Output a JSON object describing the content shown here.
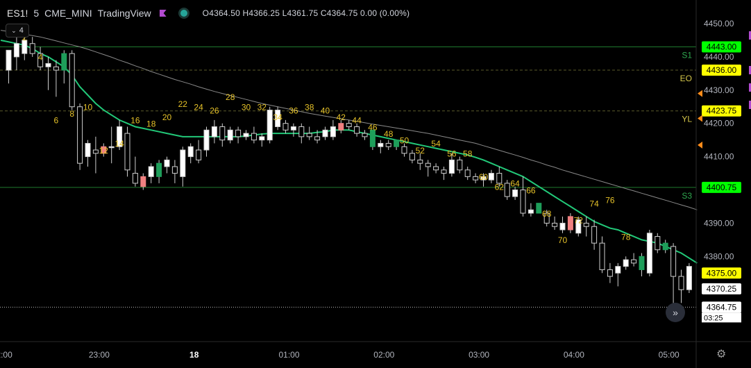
{
  "header": {
    "symbol": "ES1!",
    "interval": "5",
    "exchange": "CME_MINI",
    "source": "TradingView",
    "ohlc": "O4364.50  H4366.25  L4361.75  C4364.75  0.00 (0.00%)"
  },
  "indicator_toggle": {
    "count": "4"
  },
  "price_axis": {
    "ticks": [
      "4450.00",
      "4440.00",
      "4430.00",
      "4420.00",
      "4410.00",
      "4400.00",
      "4390.00",
      "4380.00",
      "4370.00"
    ],
    "tags": [
      {
        "label": "4443.00",
        "price": 4443.0,
        "bg": "#00ff00",
        "fg": "#000000"
      },
      {
        "label": "4436.00",
        "price": 4436.0,
        "bg": "#ffff00",
        "fg": "#000000"
      },
      {
        "label": "4423.75",
        "price": 4423.75,
        "bg": "#ffff00",
        "fg": "#000000"
      },
      {
        "label": "4400.75",
        "price": 4400.75,
        "bg": "#00ff00",
        "fg": "#000000"
      },
      {
        "label": "4375.00",
        "price": 4375.0,
        "bg": "#ffff00",
        "fg": "#000000"
      },
      {
        "label": "4370.25",
        "price": 4370.25,
        "bg": "#ffffff",
        "fg": "#000000"
      },
      {
        "label": "4364.75",
        "price": 4364.75,
        "bg": "#ffffff",
        "fg": "#000000"
      }
    ],
    "countdown": "03:25"
  },
  "time_axis": {
    "ticks": [
      {
        "label": "2:00",
        "bar": -1
      },
      {
        "label": "23:00",
        "bar": 11
      },
      {
        "label": "18",
        "bar": 23
      },
      {
        "label": "01:00",
        "bar": 35
      },
      {
        "label": "02:00",
        "bar": 47
      },
      {
        "label": "03:00",
        "bar": 59
      },
      {
        "label": "04:00",
        "bar": 71
      },
      {
        "label": "05:00",
        "bar": 83
      }
    ]
  },
  "levels": [
    {
      "label": "S1",
      "price": 4443.0,
      "color": "#1f7a2e",
      "style": "solid"
    },
    {
      "label": "EO",
      "price": 4436.0,
      "color": "#5a5a2a",
      "style": "dashed"
    },
    {
      "label": "YL",
      "price": 4423.75,
      "color": "#5a5a2a",
      "style": "dashed"
    },
    {
      "label": "S3",
      "price": 4400.75,
      "color": "#1f7a2e",
      "style": "solid"
    }
  ],
  "colors": {
    "up": "#ffffff",
    "down": "#000000",
    "wick": "#cfcfcf",
    "ema": "#22c979",
    "sma": "#8a8a8a",
    "green_bar": "#1e9e5a",
    "red_bar": "#f08080",
    "bar_number": "#e6c229"
  },
  "chart_data": {
    "type": "candlestick",
    "interval": "5 min",
    "ylim": [
      4362,
      4455
    ],
    "bars": [
      {
        "n": 0,
        "o": 4436,
        "h": 4442,
        "l": 4432,
        "c": 4442
      },
      {
        "n": 1,
        "o": 4440,
        "h": 4446,
        "l": 4436,
        "c": 4444
      },
      {
        "n": 2,
        "o": 4441,
        "h": 4447,
        "l": 4439,
        "c": 4445
      },
      {
        "n": 3,
        "o": 4444,
        "h": 4446,
        "l": 4440,
        "c": 4441
      },
      {
        "n": 4,
        "o": 4441,
        "h": 4443,
        "l": 4436,
        "c": 4437
      },
      {
        "n": 5,
        "o": 4437,
        "h": 4440,
        "l": 4430,
        "c": 4438
      },
      {
        "n": 6,
        "o": 4437,
        "h": 4439,
        "l": 4428,
        "c": 4436
      },
      {
        "n": 7,
        "o": 4436,
        "h": 4442,
        "l": 4432,
        "c": 4441,
        "color": "green"
      },
      {
        "n": 8,
        "o": 4441,
        "h": 4442,
        "l": 4424,
        "c": 4425
      },
      {
        "n": 9,
        "o": 4425,
        "h": 4426,
        "l": 4406,
        "c": 4408
      },
      {
        "n": 10,
        "o": 4410,
        "h": 4415,
        "l": 4407,
        "c": 4414
      },
      {
        "n": 11,
        "o": 4412,
        "h": 4416,
        "l": 4405,
        "c": 4411
      },
      {
        "n": 12,
        "o": 4411,
        "h": 4414,
        "l": 4410,
        "c": 4413,
        "color": "red"
      },
      {
        "n": 13,
        "o": 4413,
        "h": 4419,
        "l": 4408,
        "c": 4413
      },
      {
        "n": 14,
        "o": 4413,
        "h": 4421,
        "l": 4412,
        "c": 4419
      },
      {
        "n": 15,
        "o": 4417,
        "h": 4419,
        "l": 4404,
        "c": 4406
      },
      {
        "n": 16,
        "o": 4405,
        "h": 4410,
        "l": 4401,
        "c": 4402
      },
      {
        "n": 17,
        "o": 4401,
        "h": 4405,
        "l": 4400,
        "c": 4404,
        "color": "red"
      },
      {
        "n": 18,
        "o": 4404,
        "h": 4408,
        "l": 4402,
        "c": 4407
      },
      {
        "n": 19,
        "o": 4404,
        "h": 4409,
        "l": 4402,
        "c": 4408,
        "color": "green"
      },
      {
        "n": 20,
        "o": 4407,
        "h": 4410,
        "l": 4405,
        "c": 4409
      },
      {
        "n": 21,
        "o": 4407,
        "h": 4409,
        "l": 4402,
        "c": 4405
      },
      {
        "n": 22,
        "o": 4404,
        "h": 4413,
        "l": 4401,
        "c": 4412
      },
      {
        "n": 23,
        "o": 4410,
        "h": 4414,
        "l": 4408,
        "c": 4413
      },
      {
        "n": 24,
        "o": 4412,
        "h": 4415,
        "l": 4408,
        "c": 4409
      },
      {
        "n": 25,
        "o": 4412,
        "h": 4419,
        "l": 4410,
        "c": 4418
      },
      {
        "n": 26,
        "o": 4416,
        "h": 4421,
        "l": 4414,
        "c": 4419
      },
      {
        "n": 27,
        "o": 4419,
        "h": 4420,
        "l": 4413,
        "c": 4415
      },
      {
        "n": 28,
        "o": 4415,
        "h": 4419,
        "l": 4414,
        "c": 4418
      },
      {
        "n": 29,
        "o": 4418,
        "h": 4419,
        "l": 4414,
        "c": 4416
      },
      {
        "n": 30,
        "o": 4416,
        "h": 4418,
        "l": 4415,
        "c": 4417
      },
      {
        "n": 31,
        "o": 4417,
        "h": 4419,
        "l": 4414,
        "c": 4415
      },
      {
        "n": 32,
        "o": 4415,
        "h": 4417,
        "l": 4413,
        "c": 4416
      },
      {
        "n": 33,
        "o": 4415,
        "h": 4425,
        "l": 4414,
        "c": 4424
      },
      {
        "n": 34,
        "o": 4419,
        "h": 4425,
        "l": 4418,
        "c": 4424
      },
      {
        "n": 35,
        "o": 4420,
        "h": 4421,
        "l": 4417,
        "c": 4418
      },
      {
        "n": 36,
        "o": 4418,
        "h": 4420,
        "l": 4416,
        "c": 4419
      },
      {
        "n": 37,
        "o": 4419,
        "h": 4420,
        "l": 4414,
        "c": 4416
      },
      {
        "n": 38,
        "o": 4417,
        "h": 4419,
        "l": 4415,
        "c": 4416
      },
      {
        "n": 39,
        "o": 4416,
        "h": 4418,
        "l": 4414,
        "c": 4415
      },
      {
        "n": 40,
        "o": 4416,
        "h": 4419,
        "l": 4415,
        "c": 4418
      },
      {
        "n": 41,
        "o": 4416,
        "h": 4421,
        "l": 4415,
        "c": 4419
      },
      {
        "n": 42,
        "o": 4418,
        "h": 4421,
        "l": 4417,
        "c": 4420,
        "color": "red"
      },
      {
        "n": 43,
        "o": 4420,
        "h": 4421,
        "l": 4418,
        "c": 4419
      },
      {
        "n": 44,
        "o": 4419,
        "h": 4420,
        "l": 4416,
        "c": 4417
      },
      {
        "n": 45,
        "o": 4417,
        "h": 4418,
        "l": 4415,
        "c": 4416
      },
      {
        "n": 46,
        "o": 4418,
        "h": 4418,
        "l": 4412,
        "c": 4413,
        "color": "green"
      },
      {
        "n": 47,
        "o": 4413,
        "h": 4415,
        "l": 4411,
        "c": 4414
      },
      {
        "n": 48,
        "o": 4414,
        "h": 4415,
        "l": 4412,
        "c": 4413
      },
      {
        "n": 49,
        "o": 4415,
        "h": 4415,
        "l": 4412,
        "c": 4413,
        "color": "green"
      },
      {
        "n": 50,
        "o": 4413,
        "h": 4414,
        "l": 4410,
        "c": 4411
      },
      {
        "n": 51,
        "o": 4411,
        "h": 4412,
        "l": 4408,
        "c": 4409
      },
      {
        "n": 52,
        "o": 4409,
        "h": 4411,
        "l": 4406,
        "c": 4408
      },
      {
        "n": 53,
        "o": 4408,
        "h": 4409,
        "l": 4404,
        "c": 4407
      },
      {
        "n": 54,
        "o": 4407,
        "h": 4408,
        "l": 4405,
        "c": 4406
      },
      {
        "n": 55,
        "o": 4406,
        "h": 4407,
        "l": 4403,
        "c": 4405
      },
      {
        "n": 56,
        "o": 4405,
        "h": 4411,
        "l": 4404,
        "c": 4409
      },
      {
        "n": 57,
        "o": 4409,
        "h": 4410,
        "l": 4405,
        "c": 4406
      },
      {
        "n": 58,
        "o": 4406,
        "h": 4407,
        "l": 4403,
        "c": 4404
      },
      {
        "n": 59,
        "o": 4404,
        "h": 4405,
        "l": 4402,
        "c": 4403
      },
      {
        "n": 60,
        "o": 4403,
        "h": 4405,
        "l": 4401,
        "c": 4404
      },
      {
        "n": 61,
        "o": 4403,
        "h": 4406,
        "l": 4402,
        "c": 4405
      },
      {
        "n": 62,
        "o": 4405,
        "h": 4407,
        "l": 4401,
        "c": 4402
      },
      {
        "n": 63,
        "o": 4402,
        "h": 4403,
        "l": 4397,
        "c": 4398
      },
      {
        "n": 64,
        "o": 4398,
        "h": 4401,
        "l": 4397,
        "c": 4400
      },
      {
        "n": 65,
        "o": 4400,
        "h": 4404,
        "l": 4392,
        "c": 4393
      },
      {
        "n": 66,
        "o": 4393,
        "h": 4396,
        "l": 4392,
        "c": 4394
      },
      {
        "n": 67,
        "o": 4396,
        "h": 4396,
        "l": 4393,
        "c": 4393,
        "color": "green"
      },
      {
        "n": 68,
        "o": 4393,
        "h": 4394,
        "l": 4389,
        "c": 4390
      },
      {
        "n": 69,
        "o": 4390,
        "h": 4392,
        "l": 4388,
        "c": 4389
      },
      {
        "n": 70,
        "o": 4388,
        "h": 4392,
        "l": 4387,
        "c": 4390
      },
      {
        "n": 71,
        "o": 4388,
        "h": 4393,
        "l": 4387,
        "c": 4392,
        "color": "red"
      },
      {
        "n": 72,
        "o": 4387,
        "h": 4392,
        "l": 4386,
        "c": 4391
      },
      {
        "n": 73,
        "o": 4390,
        "h": 4392,
        "l": 4386,
        "c": 4389
      },
      {
        "n": 74,
        "o": 4389,
        "h": 4391,
        "l": 4382,
        "c": 4384
      },
      {
        "n": 75,
        "o": 4384,
        "h": 4386,
        "l": 4375,
        "c": 4376
      },
      {
        "n": 76,
        "o": 4376,
        "h": 4378,
        "l": 4372,
        "c": 4374
      },
      {
        "n": 77,
        "o": 4375,
        "h": 4378,
        "l": 4371,
        "c": 4377
      },
      {
        "n": 78,
        "o": 4377,
        "h": 4380,
        "l": 4376,
        "c": 4379
      },
      {
        "n": 79,
        "o": 4379,
        "h": 4381,
        "l": 4377,
        "c": 4378
      },
      {
        "n": 80,
        "o": 4376,
        "h": 4381,
        "l": 4374,
        "c": 4380,
        "color": "green"
      },
      {
        "n": 81,
        "o": 4375,
        "h": 4388,
        "l": 4374,
        "c": 4387
      },
      {
        "n": 82,
        "o": 4386,
        "h": 4387,
        "l": 4381,
        "c": 4382
      },
      {
        "n": 83,
        "o": 4382,
        "h": 4385,
        "l": 4381,
        "c": 4384,
        "color": "green"
      },
      {
        "n": 84,
        "o": 4383,
        "h": 4384,
        "l": 4366,
        "c": 4374
      },
      {
        "n": 85,
        "o": 4374,
        "h": 4376,
        "l": 4366,
        "c": 4370
      },
      {
        "n": 86,
        "o": 4370,
        "h": 4378,
        "l": 4369,
        "c": 4377
      },
      {
        "n": 87,
        "o": 4377,
        "h": 4378,
        "l": 4369,
        "c": 4370,
        "color": "green"
      },
      {
        "n": 88,
        "o": 4370,
        "h": 4374,
        "l": 4364,
        "c": 4372
      }
    ],
    "ema": [
      4445,
      4444.5,
      4444,
      4443.5,
      4442.5,
      4441,
      4440,
      4438.5,
      4437,
      4434.5,
      4431,
      4428.5,
      4426,
      4424,
      4422.5,
      4421,
      4420,
      4419,
      4418.5,
      4418,
      4417.5,
      4417,
      4416.5,
      4416,
      4416,
      4416,
      4416,
      4416,
      4416,
      4416,
      4416,
      4416.2,
      4416.5,
      4416.8,
      4417,
      4417,
      4417,
      4417,
      4417,
      4417,
      4417.3,
      4417.5,
      4418,
      4418,
      4418,
      4417.5,
      4417,
      4416.5,
      4416,
      4415.5,
      4415,
      4414.5,
      4414,
      4413.5,
      4413,
      4412.5,
      4412,
      4411.5,
      4411,
      4410.5,
      4409.8,
      4409,
      4408,
      4407,
      4406,
      4405,
      4404,
      4402.5,
      4401,
      4399.5,
      4398,
      4396.5,
      4395,
      4393.5,
      4392,
      4390.5,
      4389.5,
      4388.5,
      4388,
      4387,
      4386,
      4385,
      4384.5,
      4384,
      4383,
      4382,
      4381,
      4379.5,
      4378
    ],
    "sma": [
      4448,
      4447.6,
      4447.2,
      4446.8,
      4446.4,
      4446,
      4445.4,
      4444.8,
      4444.2,
      4443.6,
      4443,
      4442.3,
      4441.5,
      4440.7,
      4439.9,
      4439,
      4438.2,
      4437.3,
      4436.5,
      4435.6,
      4434.8,
      4434,
      4433.2,
      4432.5,
      4431.8,
      4431,
      4430.3,
      4429.6,
      4429,
      4428.4,
      4427.8,
      4427.2,
      4426.6,
      4426,
      4425.5,
      4425,
      4424.5,
      4424,
      4423.5,
      4423,
      4422.6,
      4422.2,
      4421.8,
      4421.4,
      4421,
      4420.6,
      4420.2,
      4419.8,
      4419.4,
      4419,
      4418.6,
      4418.2,
      4417.8,
      4417.4,
      4417,
      4416.5,
      4416,
      4415.5,
      4415,
      4414.5,
      4414,
      4413.3,
      4412.6,
      4411.9,
      4411.2,
      4410.5,
      4409.8,
      4409,
      4408.3,
      4407.5,
      4406.8,
      4406,
      4405.3,
      4404.6,
      4403.9,
      4403.2,
      4402.5,
      4401.8,
      4401.1,
      4400.4,
      4399.7,
      4399,
      4398.3,
      4397.6,
      4396.9,
      4396.2,
      4395.5,
      4394.8,
      4394
    ],
    "bar_labels": [
      {
        "bar": 2,
        "text": "2",
        "price": 4445
      },
      {
        "bar": 4,
        "text": "4",
        "price": 4439
      },
      {
        "bar": 6,
        "text": "6",
        "price": 4420
      },
      {
        "bar": 8,
        "text": "8",
        "price": 4422
      },
      {
        "bar": 10,
        "text": "10",
        "price": 4424
      },
      {
        "bar": 12,
        "text": "12",
        "price": 4411
      },
      {
        "bar": 14,
        "text": "14",
        "price": 4413
      },
      {
        "bar": 16,
        "text": "16",
        "price": 4420
      },
      {
        "bar": 18,
        "text": "18",
        "price": 4419
      },
      {
        "bar": 20,
        "text": "20",
        "price": 4421
      },
      {
        "bar": 22,
        "text": "22",
        "price": 4425
      },
      {
        "bar": 24,
        "text": "24",
        "price": 4424
      },
      {
        "bar": 26,
        "text": "26",
        "price": 4423
      },
      {
        "bar": 28,
        "text": "28",
        "price": 4427
      },
      {
        "bar": 30,
        "text": "30",
        "price": 4424
      },
      {
        "bar": 32,
        "text": "32",
        "price": 4424
      },
      {
        "bar": 34,
        "text": "34",
        "price": 4421
      },
      {
        "bar": 36,
        "text": "36",
        "price": 4423
      },
      {
        "bar": 38,
        "text": "38",
        "price": 4424
      },
      {
        "bar": 40,
        "text": "40",
        "price": 4423
      },
      {
        "bar": 42,
        "text": "42",
        "price": 4421
      },
      {
        "bar": 44,
        "text": "44",
        "price": 4420
      },
      {
        "bar": 46,
        "text": "46",
        "price": 4418
      },
      {
        "bar": 48,
        "text": "48",
        "price": 4416
      },
      {
        "bar": 50,
        "text": "50",
        "price": 4414
      },
      {
        "bar": 52,
        "text": "52",
        "price": 4411
      },
      {
        "bar": 54,
        "text": "54",
        "price": 4413
      },
      {
        "bar": 56,
        "text": "56",
        "price": 4410
      },
      {
        "bar": 58,
        "text": "58",
        "price": 4410
      },
      {
        "bar": 60,
        "text": "60",
        "price": 4403
      },
      {
        "bar": 62,
        "text": "62",
        "price": 4400
      },
      {
        "bar": 64,
        "text": "64",
        "price": 4401
      },
      {
        "bar": 66,
        "text": "66",
        "price": 4399
      },
      {
        "bar": 68,
        "text": "68",
        "price": 4392
      },
      {
        "bar": 70,
        "text": "70",
        "price": 4384
      },
      {
        "bar": 72,
        "text": "72",
        "price": 4390
      },
      {
        "bar": 74,
        "text": "74",
        "price": 4395
      },
      {
        "bar": 76,
        "text": "76",
        "price": 4396
      },
      {
        "bar": 78,
        "text": "78",
        "price": 4385
      }
    ]
  }
}
